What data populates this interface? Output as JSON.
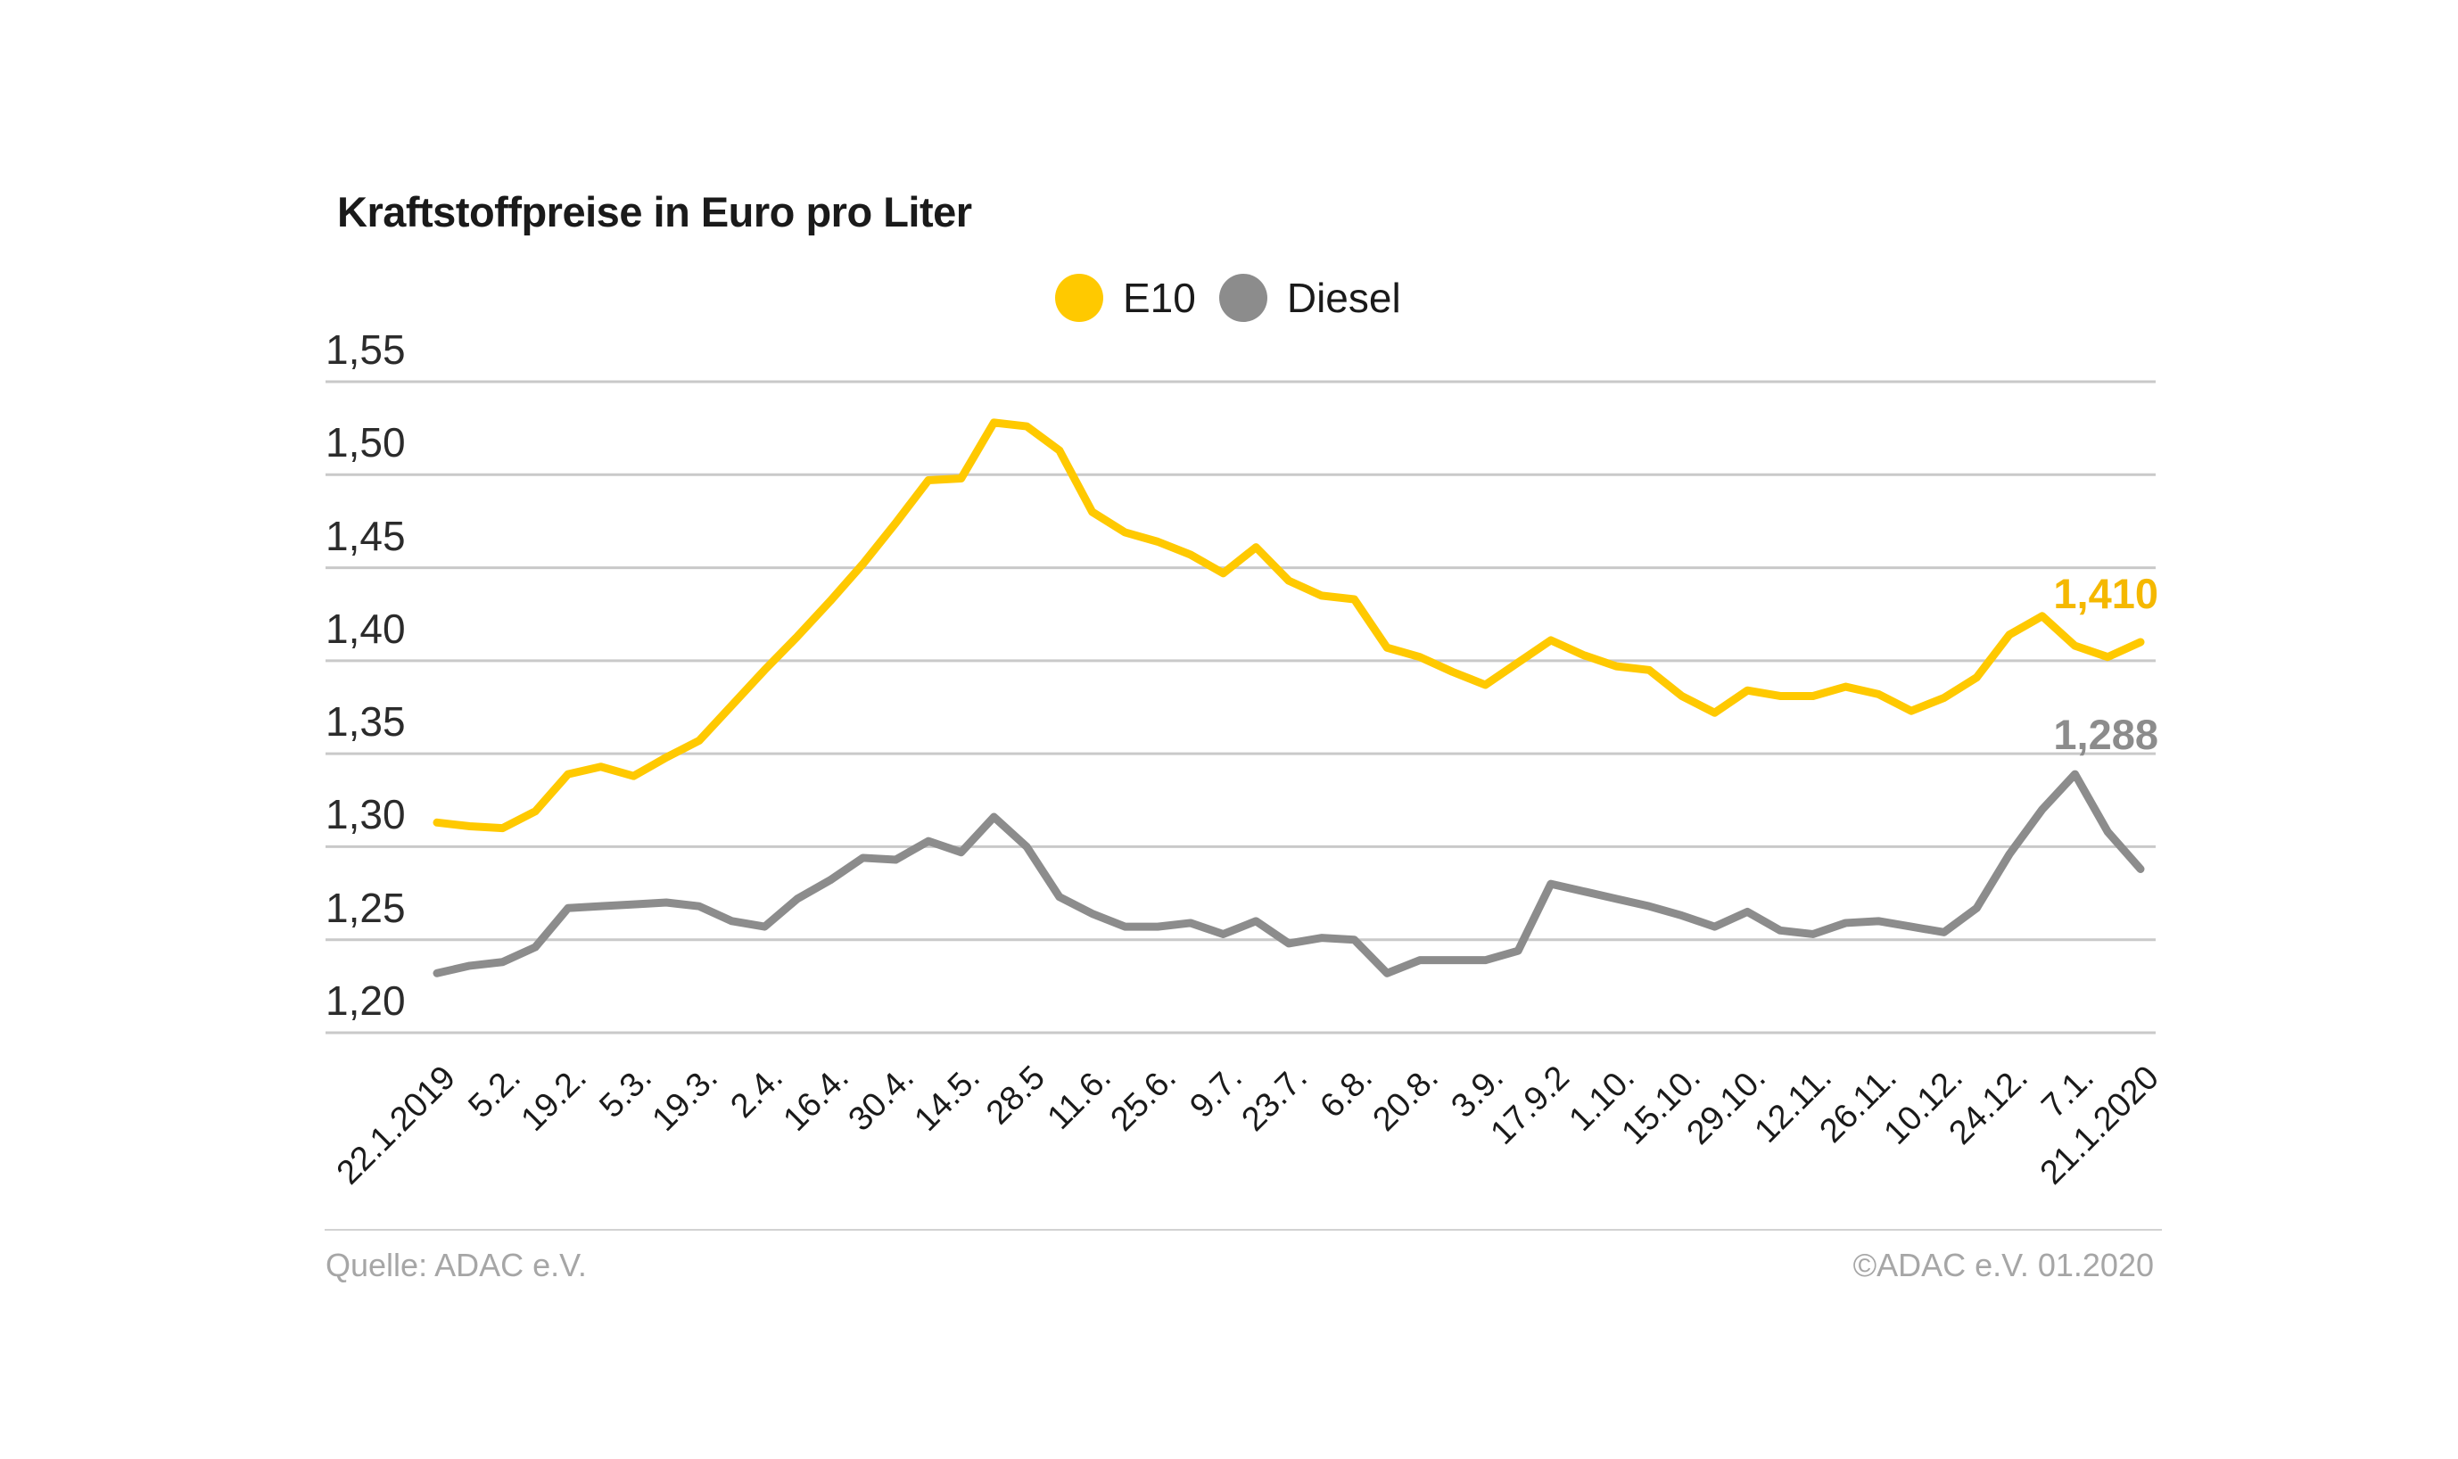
{
  "chart_data": {
    "type": "line",
    "title": "Kraftstoffpreise in Euro pro Liter",
    "unit": "Euro pro Liter",
    "ylim": [
      1.2,
      1.55
    ],
    "grid": true,
    "legend_position": "top-center",
    "x_frequency": "weekly",
    "x_range": [
      "22.1.2019",
      "21.1.2020"
    ],
    "y_ticks": [
      {
        "label": "1,55",
        "value": 1.55
      },
      {
        "label": "1,50",
        "value": 1.5
      },
      {
        "label": "1,45",
        "value": 1.45
      },
      {
        "label": "1,40",
        "value": 1.4
      },
      {
        "label": "1,35",
        "value": 1.35
      },
      {
        "label": "1,30",
        "value": 1.3
      },
      {
        "label": "1,25",
        "value": 1.25
      },
      {
        "label": "1,20",
        "value": 1.2
      }
    ],
    "x_tick_labels": [
      "22.1.2019",
      "5.2.",
      "19.2.",
      "5.3.",
      "19.3.",
      "2.4.",
      "16.4.",
      "30.4.",
      "14.5.",
      "28.5",
      "11.6.",
      "25.6.",
      "9.7.",
      "23.7.",
      "6.8.",
      "20.8.",
      "3.9.",
      "17.9.2",
      "1.10.",
      "15.10.",
      "29.10.",
      "12.11.",
      "26.11.",
      "10.12.",
      "24.12.",
      "7.1.",
      "21.1.2020"
    ],
    "series": [
      {
        "name": "E10",
        "color": "#FFC900",
        "values": [
          1.313,
          1.311,
          1.31,
          1.319,
          1.339,
          1.343,
          1.338,
          1.348,
          1.357,
          1.376,
          1.395,
          1.413,
          1.432,
          1.452,
          1.474,
          1.497,
          1.498,
          1.528,
          1.526,
          1.513,
          1.48,
          1.469,
          1.464,
          1.457,
          1.447,
          1.461,
          1.443,
          1.435,
          1.433,
          1.407,
          1.402,
          1.394,
          1.387,
          1.399,
          1.411,
          1.403,
          1.397,
          1.395,
          1.381,
          1.372,
          1.384,
          1.381,
          1.381,
          1.386,
          1.382,
          1.373,
          1.38,
          1.391,
          1.414,
          1.424,
          1.408,
          1.402,
          1.41
        ]
      },
      {
        "name": "Diesel",
        "color": "#8C8C8C",
        "values": [
          1.232,
          1.236,
          1.238,
          1.246,
          1.267,
          1.268,
          1.269,
          1.27,
          1.268,
          1.26,
          1.257,
          1.272,
          1.282,
          1.294,
          1.293,
          1.303,
          1.297,
          1.316,
          1.3,
          1.273,
          1.264,
          1.257,
          1.257,
          1.259,
          1.253,
          1.26,
          1.248,
          1.251,
          1.25,
          1.232,
          1.239,
          1.239,
          1.239,
          1.244,
          1.28,
          1.276,
          1.272,
          1.268,
          1.263,
          1.257,
          1.265,
          1.255,
          1.253,
          1.259,
          1.26,
          1.257,
          1.254,
          1.267,
          1.296,
          1.32,
          1.339,
          1.308,
          1.288
        ]
      }
    ],
    "annotations": {
      "e10_last": "1,410",
      "diesel_last": "1,288"
    }
  },
  "footer": {
    "source": "Quelle: ADAC e.V.",
    "copyright": "©ADAC e.V.  01.2020"
  }
}
